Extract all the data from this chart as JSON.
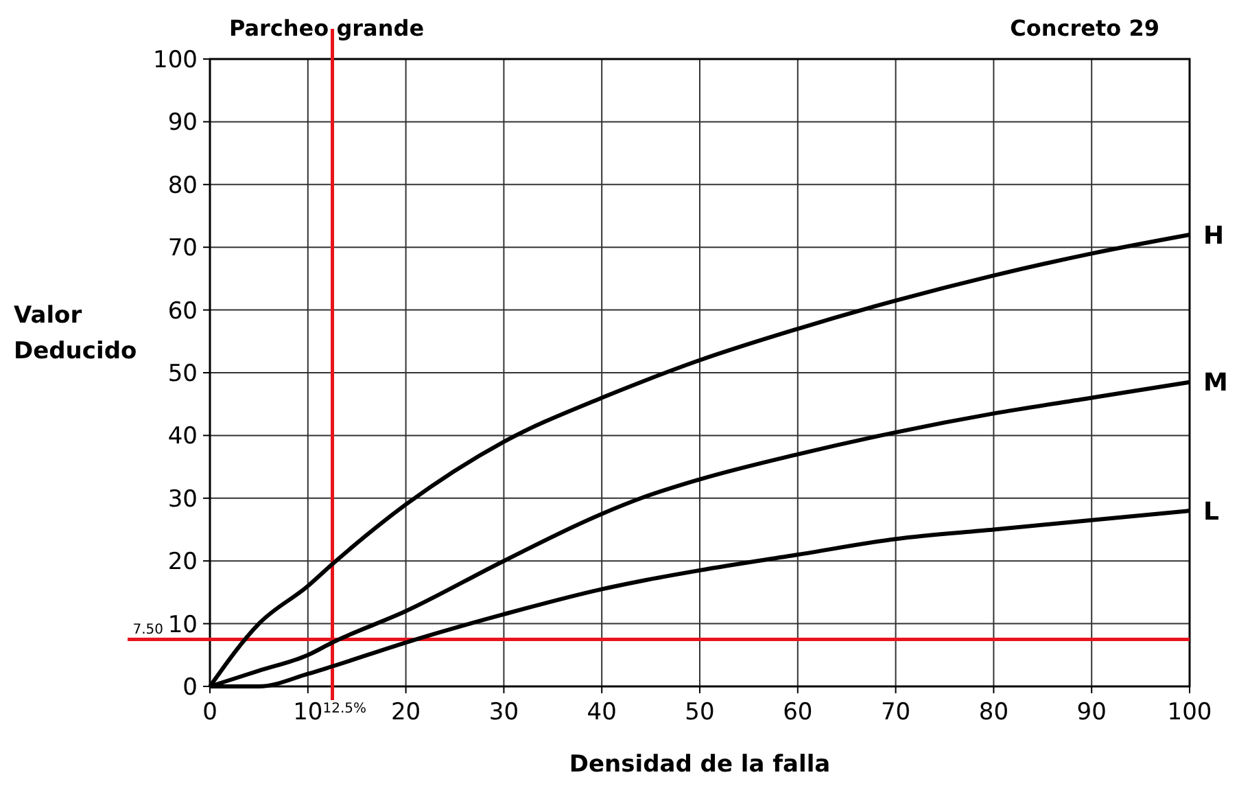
{
  "chart_data": {
    "type": "line",
    "title": "Parcheo grande",
    "annotations": [
      "Concreto 29"
    ],
    "xlabel": "Densidad de la falla",
    "ylabel": "Valor Deducido",
    "xlim": [
      0,
      100
    ],
    "xticks": [
      0,
      10,
      20,
      30,
      40,
      50,
      60,
      70,
      80,
      90,
      100
    ],
    "ylim": [
      0,
      100
    ],
    "yticks": [
      0,
      10,
      20,
      30,
      40,
      50,
      60,
      70,
      80,
      90,
      100
    ],
    "grid": true,
    "marker": "none",
    "line_style": "solid",
    "x": [
      0,
      5,
      10,
      12.5,
      20,
      30,
      40,
      44,
      50,
      60,
      70,
      80,
      90,
      100
    ],
    "series": [
      {
        "name": "H",
        "color": "#000000",
        "values": [
          0,
          10,
          16,
          19.5,
          29,
          39,
          46,
          48.5,
          52,
          57,
          61.5,
          65.5,
          69,
          72
        ]
      },
      {
        "name": "M",
        "color": "#000000",
        "values": [
          0,
          2.5,
          5,
          7,
          12,
          20,
          27.5,
          30,
          33,
          37,
          40.5,
          43.5,
          46,
          48.5
        ]
      },
      {
        "name": "L",
        "color": "#000000",
        "values": [
          0,
          0,
          2,
          3.2,
          7,
          11.5,
          15.5,
          16.8,
          18.5,
          21,
          23.5,
          25,
          26.5,
          28
        ]
      }
    ],
    "ref_lines": [
      {
        "axis": "x",
        "value": 12.5,
        "label": "12.5%",
        "color": "#e8141c"
      },
      {
        "axis": "y",
        "value": 7.5,
        "label": "7.50",
        "color": "#e8141c"
      }
    ]
  }
}
